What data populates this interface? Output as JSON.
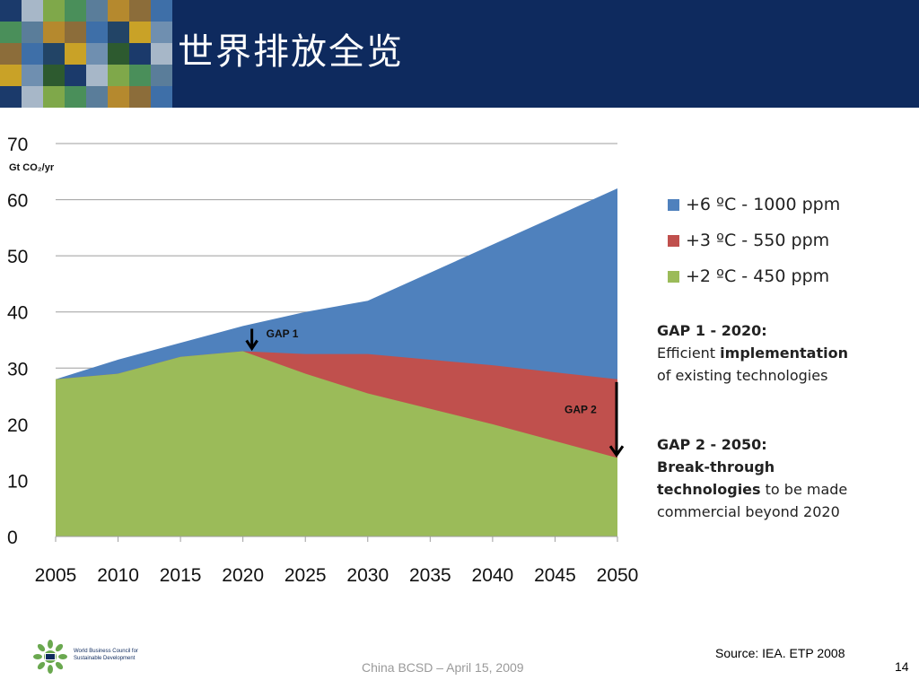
{
  "slide": {
    "title": "世界排放全览",
    "footer_center": "China BCSD – April 15, 2009",
    "source": "Source: IEA. ETP 2008",
    "page_number": "14",
    "logo_text": "World Business Council for Sustainable Development"
  },
  "colors": {
    "header": "#0e2a5e",
    "blue": "#4f81bd",
    "red": "#c0504d",
    "green": "#9bbb59"
  },
  "chart_data": {
    "type": "area",
    "ylabel": "Gt CO₂/yr",
    "xlabel": "",
    "ylim": [
      0,
      70
    ],
    "yticks": [
      0,
      10,
      20,
      30,
      40,
      50,
      60,
      70
    ],
    "xlim": [
      2005,
      2050
    ],
    "xticks": [
      2005,
      2010,
      2015,
      2020,
      2025,
      2030,
      2035,
      2040,
      2045,
      2050
    ],
    "grid": true,
    "legend_position": "right",
    "series": [
      {
        "name": "+6 ºC - 1000 ppm",
        "color": "#4f81bd",
        "x": [
          2005,
          2010,
          2015,
          2020,
          2025,
          2030,
          2040,
          2050
        ],
        "y": [
          28,
          31.5,
          34.5,
          37.5,
          40,
          42,
          52,
          62
        ]
      },
      {
        "name": "+3 ºC - 550 ppm",
        "color": "#c0504d",
        "x": [
          2005,
          2010,
          2015,
          2020,
          2025,
          2030,
          2040,
          2050
        ],
        "y": [
          28,
          29,
          32,
          33,
          32.5,
          32.5,
          30.5,
          28
        ]
      },
      {
        "name": "+2 ºC - 450 ppm",
        "color": "#9bbb59",
        "x": [
          2005,
          2010,
          2015,
          2020,
          2025,
          2030,
          2040,
          2050
        ],
        "y": [
          28,
          29,
          32,
          33,
          29,
          25.5,
          20,
          14
        ]
      }
    ],
    "annotations": [
      {
        "label": "GAP 1",
        "year": 2020
      },
      {
        "label": "GAP 2",
        "year": 2050
      }
    ]
  },
  "notes": {
    "gap1": {
      "title": "GAP 1 - 2020:",
      "line1_plain": "Efficient ",
      "line1_bold": "implementation",
      "line2": "of existing technologies"
    },
    "gap2": {
      "title": "GAP 2 - 2050:",
      "line1": "Break-through",
      "line2_bold": "technologies",
      "line2_plain": " to be made",
      "line3": "commercial beyond 2020"
    }
  }
}
